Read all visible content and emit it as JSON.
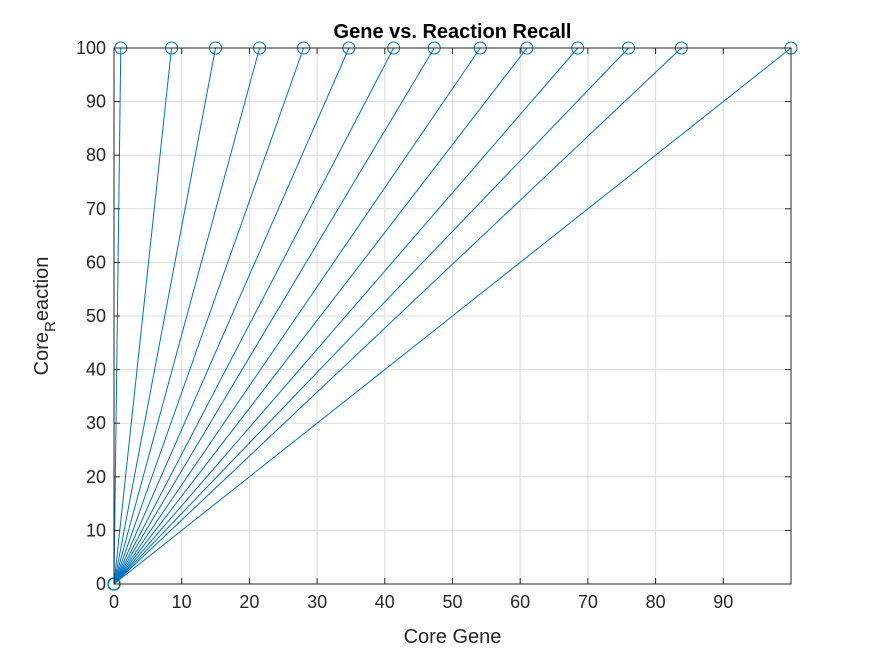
{
  "chart_data": {
    "type": "line",
    "title": "Gene vs. Reaction Recall",
    "xlabel": "Core Gene",
    "ylabel_main": "Core",
    "ylabel_sub": "R",
    "ylabel_tail": "eaction",
    "xlim": [
      0,
      100
    ],
    "ylim": [
      0,
      100
    ],
    "x_ticks": [
      0,
      10,
      20,
      30,
      40,
      50,
      60,
      70,
      80,
      90
    ],
    "y_ticks": [
      0,
      10,
      20,
      30,
      40,
      50,
      60,
      70,
      80,
      90,
      100
    ],
    "grid": true,
    "line_color": "#0072BD",
    "series": [
      {
        "x": [
          0,
          1
        ],
        "y": [
          0,
          100
        ]
      },
      {
        "x": [
          0,
          8.5
        ],
        "y": [
          0,
          100
        ]
      },
      {
        "x": [
          0,
          15
        ],
        "y": [
          0,
          100
        ]
      },
      {
        "x": [
          0,
          21.5
        ],
        "y": [
          0,
          100
        ]
      },
      {
        "x": [
          0,
          28
        ],
        "y": [
          0,
          100
        ]
      },
      {
        "x": [
          0,
          34.7
        ],
        "y": [
          0,
          100
        ]
      },
      {
        "x": [
          0,
          41.3
        ],
        "y": [
          0,
          100
        ]
      },
      {
        "x": [
          0,
          47.3
        ],
        "y": [
          0,
          100
        ]
      },
      {
        "x": [
          0,
          54.1
        ],
        "y": [
          0,
          100
        ]
      },
      {
        "x": [
          0,
          61
        ],
        "y": [
          0,
          100
        ]
      },
      {
        "x": [
          0,
          68.5
        ],
        "y": [
          0,
          100
        ]
      },
      {
        "x": [
          0,
          76
        ],
        "y": [
          0,
          100
        ]
      },
      {
        "x": [
          0,
          83.8
        ],
        "y": [
          0,
          100
        ]
      },
      {
        "x": [
          0,
          100
        ],
        "y": [
          0,
          100
        ]
      }
    ]
  }
}
